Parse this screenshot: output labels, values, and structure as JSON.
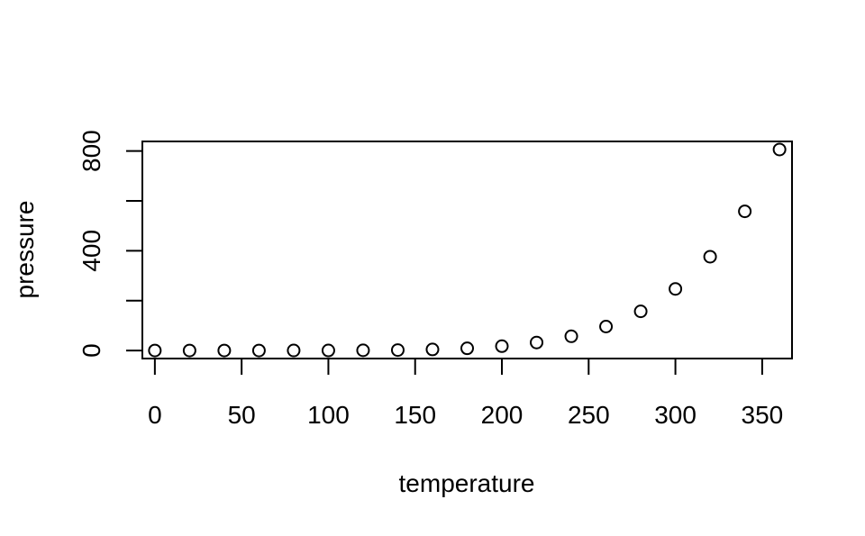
{
  "chart_data": {
    "type": "scatter",
    "title": "",
    "xlabel": "temperature",
    "ylabel": "pressure",
    "xlim": [
      -7.2,
      367.2
    ],
    "ylim": [
      -32.2,
      838.3
    ],
    "xticks": [
      0,
      50,
      100,
      150,
      200,
      250,
      300,
      350
    ],
    "xtick_labels": [
      "0",
      "50",
      "100",
      "150",
      "200",
      "250",
      "300",
      "350"
    ],
    "yticks": [
      0,
      200,
      400,
      600,
      800
    ],
    "ytick_labels": [
      "0",
      "",
      "400",
      "",
      "800"
    ],
    "grid": false,
    "legend": "none",
    "marker": "open-circle",
    "x": [
      0,
      20,
      40,
      60,
      80,
      100,
      120,
      140,
      160,
      180,
      200,
      220,
      240,
      260,
      280,
      300,
      320,
      340,
      360
    ],
    "y": [
      0.0002,
      0.0012,
      0.006,
      0.03,
      0.09,
      0.27,
      0.75,
      1.85,
      4.2,
      8.8,
      17.3,
      32.1,
      57.0,
      96.0,
      157.0,
      247.0,
      376.0,
      558.0,
      806.0
    ]
  }
}
